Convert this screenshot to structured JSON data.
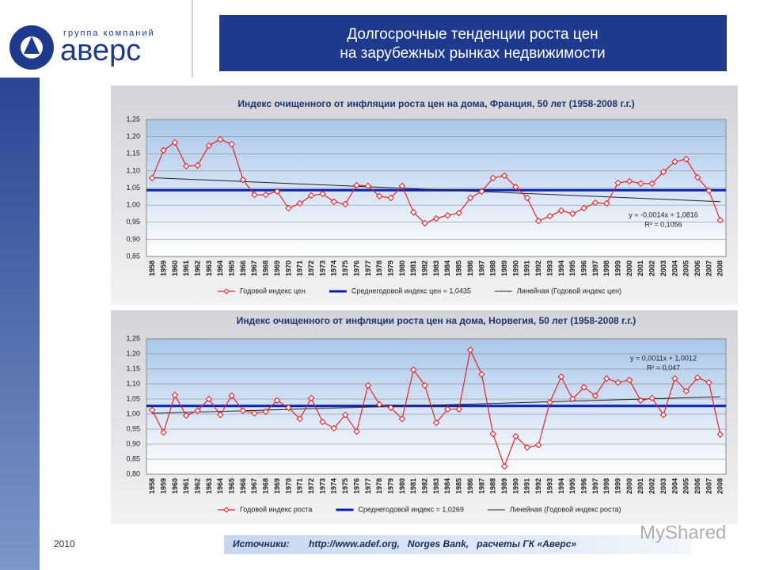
{
  "logo": {
    "tagline": "группа компаний",
    "name": "аверс"
  },
  "header": {
    "title_lines": [
      "Долгосрочные  тенденции роста цен",
      "на зарубежных рынках недвижимости"
    ]
  },
  "chart_data": [
    {
      "type": "line",
      "title": "Индекс очищенного от инфляции роста цен на дома, Франция, 50 лет (1958-2008 г.г.)",
      "categories": [
        "1958",
        "1959",
        "1960",
        "1961",
        "1962",
        "1963",
        "1964",
        "1965",
        "1966",
        "1967",
        "1968",
        "1969",
        "1970",
        "1971",
        "1972",
        "1973",
        "1974",
        "1975",
        "1976",
        "1977",
        "1978",
        "1979",
        "1980",
        "1981",
        "1982",
        "1983",
        "1984",
        "1985",
        "1986",
        "1987",
        "1988",
        "1989",
        "1990",
        "1991",
        "1992",
        "1993",
        "1994",
        "1995",
        "1996",
        "1997",
        "1998",
        "1999",
        "2000",
        "2001",
        "2002",
        "2003",
        "2004",
        "2005",
        "2006",
        "2007",
        "2008"
      ],
      "series": [
        {
          "name": "Годовой индекс цен",
          "color": "#e3262b",
          "values": [
            1.079,
            1.16,
            1.183,
            1.114,
            1.116,
            1.174,
            1.192,
            1.178,
            1.074,
            1.03,
            1.03,
            1.04,
            0.991,
            1.005,
            1.028,
            1.033,
            1.01,
            1.003,
            1.058,
            1.056,
            1.026,
            1.021,
            1.056,
            0.979,
            0.947,
            0.961,
            0.97,
            0.977,
            1.021,
            1.04,
            1.079,
            1.086,
            1.053,
            1.021,
            0.954,
            0.968,
            0.984,
            0.975,
            0.991,
            1.007,
            1.005,
            1.065,
            1.07,
            1.063,
            1.063,
            1.097,
            1.127,
            1.134,
            1.081,
            1.042,
            0.956
          ]
        }
      ],
      "mean": {
        "name": "Среднегодовой индекс цен = 1,0435",
        "value": 1.0435,
        "color": "#0b22b0"
      },
      "trend": {
        "name": "Линейная (Годовой индекс цен)",
        "slope": -0.0014,
        "intercept": 1.0816,
        "equation": "y = -0,0014x + 1,0816",
        "r_squared_label": "R² = 0,1056",
        "color": "#222222"
      },
      "ylim": [
        0.85,
        1.25
      ],
      "yticks": [
        {
          "value": 0.85,
          "label": "0,85"
        },
        {
          "value": 0.9,
          "label": "0,90"
        },
        {
          "value": 0.95,
          "label": "0,95"
        },
        {
          "value": 1.0,
          "label": "1,00"
        },
        {
          "value": 1.05,
          "label": "1,05"
        },
        {
          "value": 1.1,
          "label": "1,10"
        },
        {
          "value": 1.15,
          "label": "1,15"
        },
        {
          "value": 1.2,
          "label": "1,20"
        },
        {
          "value": 1.25,
          "label": "1,25"
        }
      ],
      "grid": true,
      "legend": "bottom"
    },
    {
      "type": "line",
      "title": "Индекс очищенного от инфляции роста цен на дома, Норвегия, 50 лет (1958-2008 г.г.)",
      "categories": [
        "1958",
        "1959",
        "1960",
        "1961",
        "1962",
        "1963",
        "1964",
        "1965",
        "1966",
        "1967",
        "1968",
        "1969",
        "1970",
        "1971",
        "1972",
        "1973",
        "1974",
        "1975",
        "1976",
        "1977",
        "1978",
        "1979",
        "1980",
        "1981",
        "1982",
        "1983",
        "1984",
        "1985",
        "1986",
        "1987",
        "1988",
        "1989",
        "1990",
        "1991",
        "1992",
        "1993",
        "1994",
        "1995",
        "1996",
        "1997",
        "1998",
        "1999",
        "2000",
        "2001",
        "2002",
        "2003",
        "2004",
        "2005",
        "2006",
        "2007",
        "2008"
      ],
      "series": [
        {
          "name": "Годовой индекс роста",
          "color": "#e3262b",
          "values": [
            1.013,
            0.939,
            1.063,
            0.995,
            1.011,
            1.05,
            0.997,
            1.061,
            1.011,
            1.003,
            1.008,
            1.045,
            1.021,
            0.984,
            1.053,
            0.974,
            0.953,
            0.997,
            0.942,
            1.095,
            1.032,
            1.021,
            0.984,
            1.147,
            1.095,
            0.971,
            1.016,
            1.016,
            1.213,
            1.132,
            0.934,
            0.826,
            0.926,
            0.889,
            0.897,
            1.039,
            1.124,
            1.05,
            1.089,
            1.061,
            1.118,
            1.105,
            1.113,
            1.045,
            1.053,
            0.997,
            1.118,
            1.076,
            1.121,
            1.105,
            0.932
          ]
        }
      ],
      "mean": {
        "name": "Среднегодовой индекс = 1,0269",
        "value": 1.0269,
        "color": "#0b22b0"
      },
      "trend": {
        "name": "Линейная (Годовой индекс роста)",
        "slope": 0.0011,
        "intercept": 1.0012,
        "equation": "y = 0,0011x + 1,0012",
        "r_squared_label": "R² = 0,047",
        "color": "#222222"
      },
      "ylim": [
        0.8,
        1.25
      ],
      "yticks": [
        {
          "value": 0.8,
          "label": "0,80"
        },
        {
          "value": 0.85,
          "label": "0,85"
        },
        {
          "value": 0.9,
          "label": "0,90"
        },
        {
          "value": 0.95,
          "label": "0,95"
        },
        {
          "value": 1.0,
          "label": "1,00"
        },
        {
          "value": 1.05,
          "label": "1,05"
        },
        {
          "value": 1.1,
          "label": "1,10"
        },
        {
          "value": 1.15,
          "label": "1,15"
        },
        {
          "value": 1.2,
          "label": "1,20"
        },
        {
          "value": 1.25,
          "label": "1,25"
        }
      ],
      "grid": true,
      "legend": "bottom"
    }
  ],
  "footer": {
    "year": "2010",
    "sources_label": "Источники:",
    "sources": "http://www.adef.org,   Norges Bank,   расчеты ГК «Аверс»",
    "watermark": "MyShared"
  }
}
